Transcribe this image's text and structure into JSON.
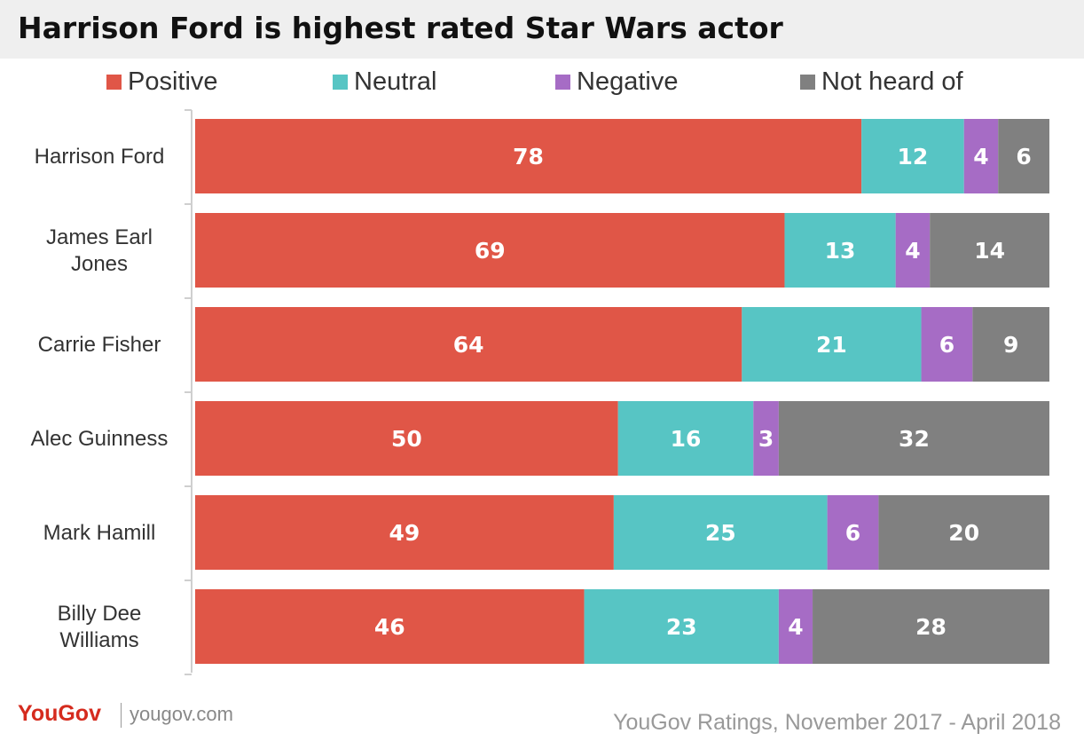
{
  "chart_data": {
    "type": "bar",
    "orientation": "horizontal",
    "stacked": true,
    "title": "Harrison Ford is highest rated Star Wars actor",
    "categories": [
      "Harrison Ford",
      "James Earl Jones",
      "Carrie Fisher",
      "Alec Guinness",
      "Mark Hamill",
      "Billy Dee Williams"
    ],
    "series": [
      {
        "name": "Positive",
        "color": "#e05647",
        "values": [
          78,
          69,
          64,
          50,
          49,
          46
        ]
      },
      {
        "name": "Neutral",
        "color": "#57c5c4",
        "values": [
          12,
          13,
          21,
          16,
          25,
          23
        ]
      },
      {
        "name": "Negative",
        "color": "#a66cc5",
        "values": [
          4,
          4,
          6,
          3,
          6,
          4
        ]
      },
      {
        "name": "Not heard of",
        "color": "#808080",
        "values": [
          6,
          14,
          9,
          32,
          20,
          28
        ]
      }
    ],
    "legend_position": "top",
    "grid": false,
    "data_labels": true
  },
  "footer": {
    "logo": "YouGov",
    "url": "yougov.com",
    "source": "YouGov Ratings, November 2017 - April 2018"
  },
  "category_display_lines": [
    [
      "Harrison Ford"
    ],
    [
      "James Earl",
      "Jones"
    ],
    [
      "Carrie Fisher"
    ],
    [
      "Alec Guinness"
    ],
    [
      "Mark Hamill"
    ],
    [
      "Billy Dee",
      "Williams"
    ]
  ]
}
